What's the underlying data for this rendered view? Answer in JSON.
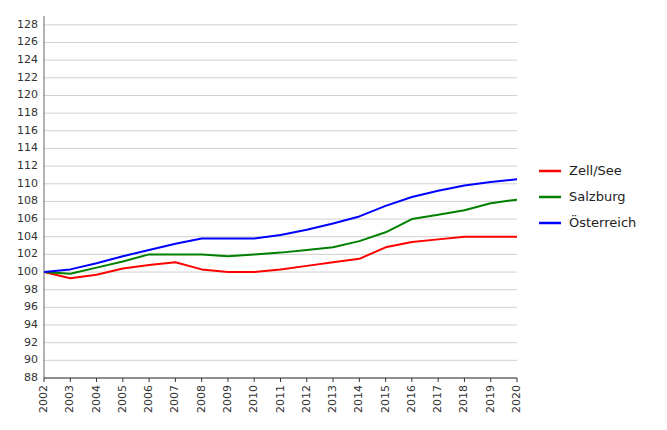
{
  "chart_data": {
    "type": "line",
    "x": [
      2002,
      2003,
      2004,
      2005,
      2006,
      2007,
      2008,
      2009,
      2010,
      2011,
      2012,
      2013,
      2014,
      2015,
      2016,
      2017,
      2018,
      2019,
      2020
    ],
    "series": [
      {
        "name": "Zell/See",
        "color": "#ff0000",
        "values": [
          100.0,
          99.3,
          99.7,
          100.4,
          100.8,
          101.1,
          100.3,
          100.0,
          100.0,
          100.3,
          100.7,
          101.1,
          101.5,
          102.8,
          103.4,
          103.7,
          104.0,
          104.0,
          104.0
        ]
      },
      {
        "name": "Salzburg",
        "color": "#008000",
        "values": [
          100.0,
          99.8,
          100.5,
          101.2,
          102.0,
          102.0,
          102.0,
          101.8,
          102.0,
          102.2,
          102.5,
          102.8,
          103.5,
          104.5,
          106.0,
          106.5,
          107.0,
          107.8,
          108.2
        ]
      },
      {
        "name": "Österreich",
        "color": "#0000ff",
        "values": [
          100.0,
          100.3,
          101.0,
          101.8,
          102.5,
          103.2,
          103.8,
          103.8,
          103.8,
          104.2,
          104.8,
          105.5,
          106.3,
          107.5,
          108.5,
          109.2,
          109.8,
          110.2,
          110.5
        ]
      }
    ],
    "xlim": [
      2002,
      2020
    ],
    "xticks": [
      2002,
      2003,
      2004,
      2005,
      2006,
      2007,
      2008,
      2009,
      2010,
      2011,
      2012,
      2013,
      2014,
      2015,
      2016,
      2017,
      2018,
      2019,
      2020
    ],
    "ylim": [
      88,
      129
    ],
    "yticks": [
      88,
      90,
      92,
      94,
      96,
      98,
      100,
      102,
      104,
      106,
      108,
      110,
      112,
      114,
      116,
      118,
      120,
      122,
      124,
      126,
      128
    ],
    "grid": true,
    "legend": "right"
  }
}
